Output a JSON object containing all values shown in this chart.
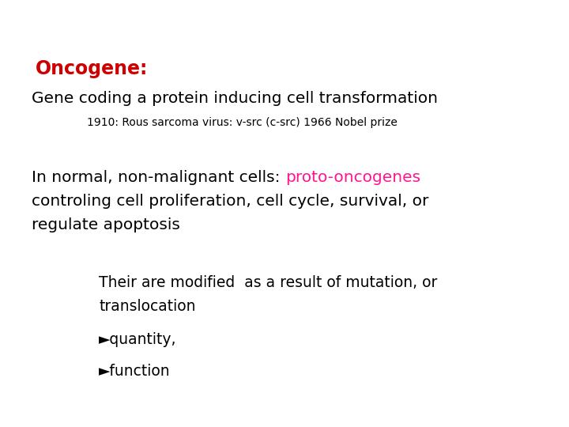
{
  "background_color": "#ffffff",
  "title_text": "Oncogene:",
  "title_color": "#cc0000",
  "title_fontsize": 17,
  "line1_text": "Gene coding a protein inducing cell transformation",
  "line1_fontsize": 14.5,
  "line1_color": "#000000",
  "line2_text": "1910: Rous sarcoma virus: v-src (c-src) 1966 Nobel prize",
  "line2_fontsize": 10,
  "line2_color": "#000000",
  "line3_prefix": "In normal, non-malignant cells: ",
  "line3_highlight": "proto-oncogenes",
  "line3_fontsize": 14.5,
  "line3_color": "#000000",
  "line3_highlight_color": "#ff1493",
  "line4_text": "controling cell proliferation, cell cycle, survival, or",
  "line4_fontsize": 14.5,
  "line4_color": "#000000",
  "line5_text": "regulate apoptosis",
  "line5_fontsize": 14.5,
  "line5_color": "#000000",
  "line6_text": "Their are modified  as a result of mutation, or",
  "line6_fontsize": 13.5,
  "line6_color": "#000000",
  "line7_text": "translocation",
  "line7_fontsize": 13.5,
  "line7_color": "#000000",
  "line8_text": "►quantity,",
  "line8_fontsize": 13.5,
  "line8_color": "#000000",
  "line9_text": "►function",
  "line9_fontsize": 13.5,
  "line9_color": "#000000",
  "font_family": "DejaVu Sans"
}
